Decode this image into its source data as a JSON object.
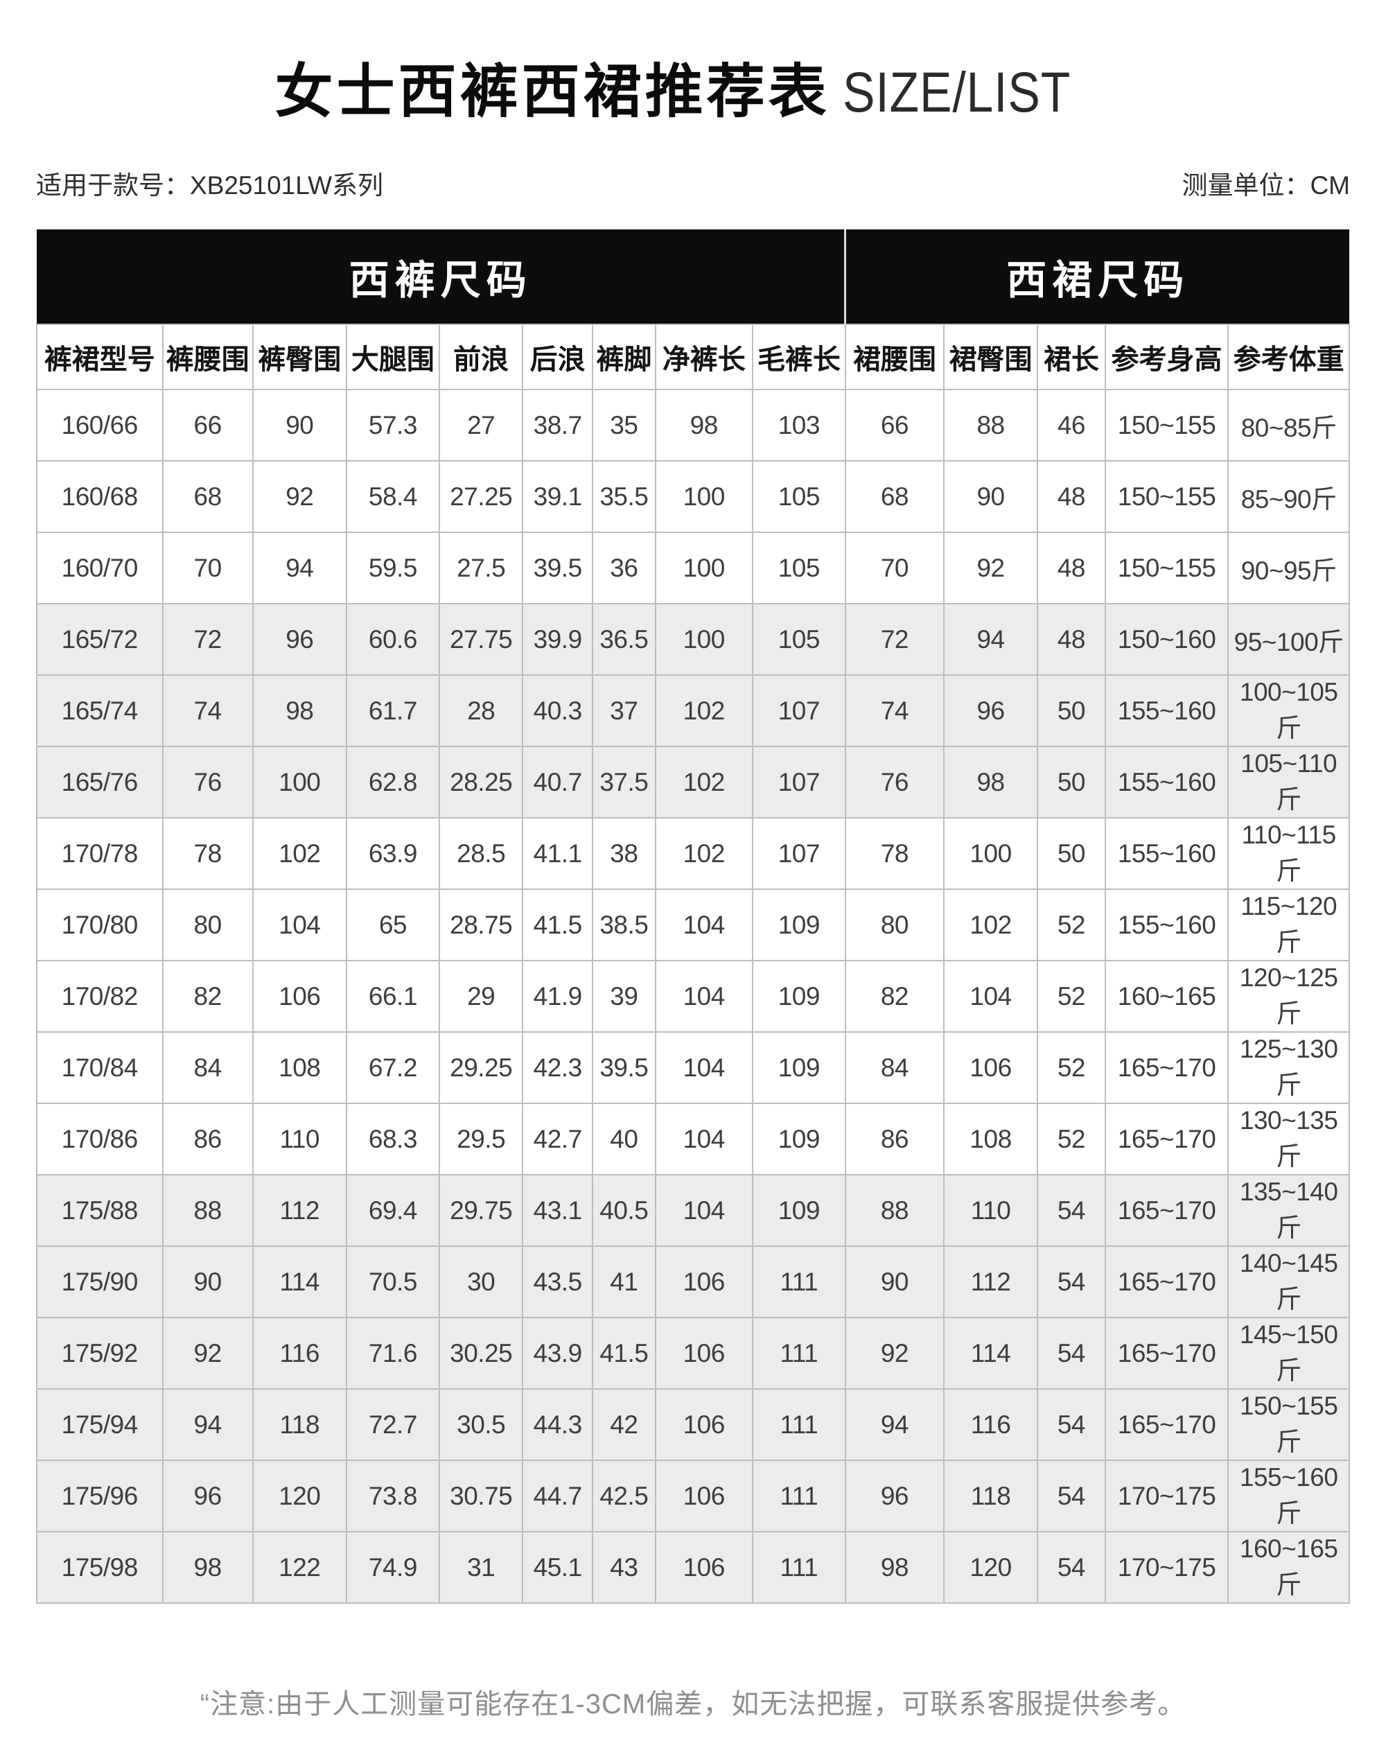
{
  "title": {
    "cn": "女士西裤西裙推荐表",
    "en": "SIZE/LIST"
  },
  "subtitle_left": "适用于款号：XB25101LW系列",
  "subtitle_right": "测量单位：CM",
  "table": {
    "group_headers": [
      {
        "label": "西裤尺码",
        "colspan": 9
      },
      {
        "label": "西裙尺码",
        "colspan": 5
      }
    ],
    "columns": [
      "裤裙型号",
      "裤腰围",
      "裤臀围",
      "大腿围",
      "前浪",
      "后浪",
      "裤脚",
      "净裤长",
      "毛裤长",
      "裙腰围",
      "裙臀围",
      "裙长",
      "参考身高",
      "参考体重"
    ],
    "rows": [
      [
        "160/66",
        "66",
        "90",
        "57.3",
        "27",
        "38.7",
        "35",
        "98",
        "103",
        "66",
        "88",
        "46",
        "150~155",
        "80~85斤"
      ],
      [
        "160/68",
        "68",
        "92",
        "58.4",
        "27.25",
        "39.1",
        "35.5",
        "100",
        "105",
        "68",
        "90",
        "48",
        "150~155",
        "85~90斤"
      ],
      [
        "160/70",
        "70",
        "94",
        "59.5",
        "27.5",
        "39.5",
        "36",
        "100",
        "105",
        "70",
        "92",
        "48",
        "150~155",
        "90~95斤"
      ],
      [
        "165/72",
        "72",
        "96",
        "60.6",
        "27.75",
        "39.9",
        "36.5",
        "100",
        "105",
        "72",
        "94",
        "48",
        "150~160",
        "95~100斤"
      ],
      [
        "165/74",
        "74",
        "98",
        "61.7",
        "28",
        "40.3",
        "37",
        "102",
        "107",
        "74",
        "96",
        "50",
        "155~160",
        "100~105斤"
      ],
      [
        "165/76",
        "76",
        "100",
        "62.8",
        "28.25",
        "40.7",
        "37.5",
        "102",
        "107",
        "76",
        "98",
        "50",
        "155~160",
        "105~110斤"
      ],
      [
        "170/78",
        "78",
        "102",
        "63.9",
        "28.5",
        "41.1",
        "38",
        "102",
        "107",
        "78",
        "100",
        "50",
        "155~160",
        "110~115斤"
      ],
      [
        "170/80",
        "80",
        "104",
        "65",
        "28.75",
        "41.5",
        "38.5",
        "104",
        "109",
        "80",
        "102",
        "52",
        "155~160",
        "115~120斤"
      ],
      [
        "170/82",
        "82",
        "106",
        "66.1",
        "29",
        "41.9",
        "39",
        "104",
        "109",
        "82",
        "104",
        "52",
        "160~165",
        "120~125斤"
      ],
      [
        "170/84",
        "84",
        "108",
        "67.2",
        "29.25",
        "42.3",
        "39.5",
        "104",
        "109",
        "84",
        "106",
        "52",
        "165~170",
        "125~130斤"
      ],
      [
        "170/86",
        "86",
        "110",
        "68.3",
        "29.5",
        "42.7",
        "40",
        "104",
        "109",
        "86",
        "108",
        "52",
        "165~170",
        "130~135斤"
      ],
      [
        "175/88",
        "88",
        "112",
        "69.4",
        "29.75",
        "43.1",
        "40.5",
        "104",
        "109",
        "88",
        "110",
        "54",
        "165~170",
        "135~140斤"
      ],
      [
        "175/90",
        "90",
        "114",
        "70.5",
        "30",
        "43.5",
        "41",
        "106",
        "111",
        "90",
        "112",
        "54",
        "165~170",
        "140~145斤"
      ],
      [
        "175/92",
        "92",
        "116",
        "71.6",
        "30.25",
        "43.9",
        "41.5",
        "106",
        "111",
        "92",
        "114",
        "54",
        "165~170",
        "145~150斤"
      ],
      [
        "175/94",
        "94",
        "118",
        "72.7",
        "30.5",
        "44.3",
        "42",
        "106",
        "111",
        "94",
        "116",
        "54",
        "165~170",
        "150~155斤"
      ],
      [
        "175/96",
        "96",
        "120",
        "73.8",
        "30.75",
        "44.7",
        "42.5",
        "106",
        "111",
        "96",
        "118",
        "54",
        "170~175",
        "155~160斤"
      ],
      [
        "175/98",
        "98",
        "122",
        "74.9",
        "31",
        "45.1",
        "43",
        "106",
        "111",
        "98",
        "120",
        "54",
        "170~175",
        "160~165斤"
      ]
    ],
    "shaded_rows": [
      3,
      4,
      5,
      11,
      12,
      13,
      14,
      15,
      16
    ]
  },
  "note": "“注意:由于人工测量可能存在1-3CM偏差，如无法把握，可联系客服提供参考。",
  "colors": {
    "banner_bg": "#0d0d0d",
    "banner_text": "#ffffff",
    "row_shade": "#ececec",
    "grid_border": "#bdbdbd",
    "note_text": "#8e8e8e"
  }
}
